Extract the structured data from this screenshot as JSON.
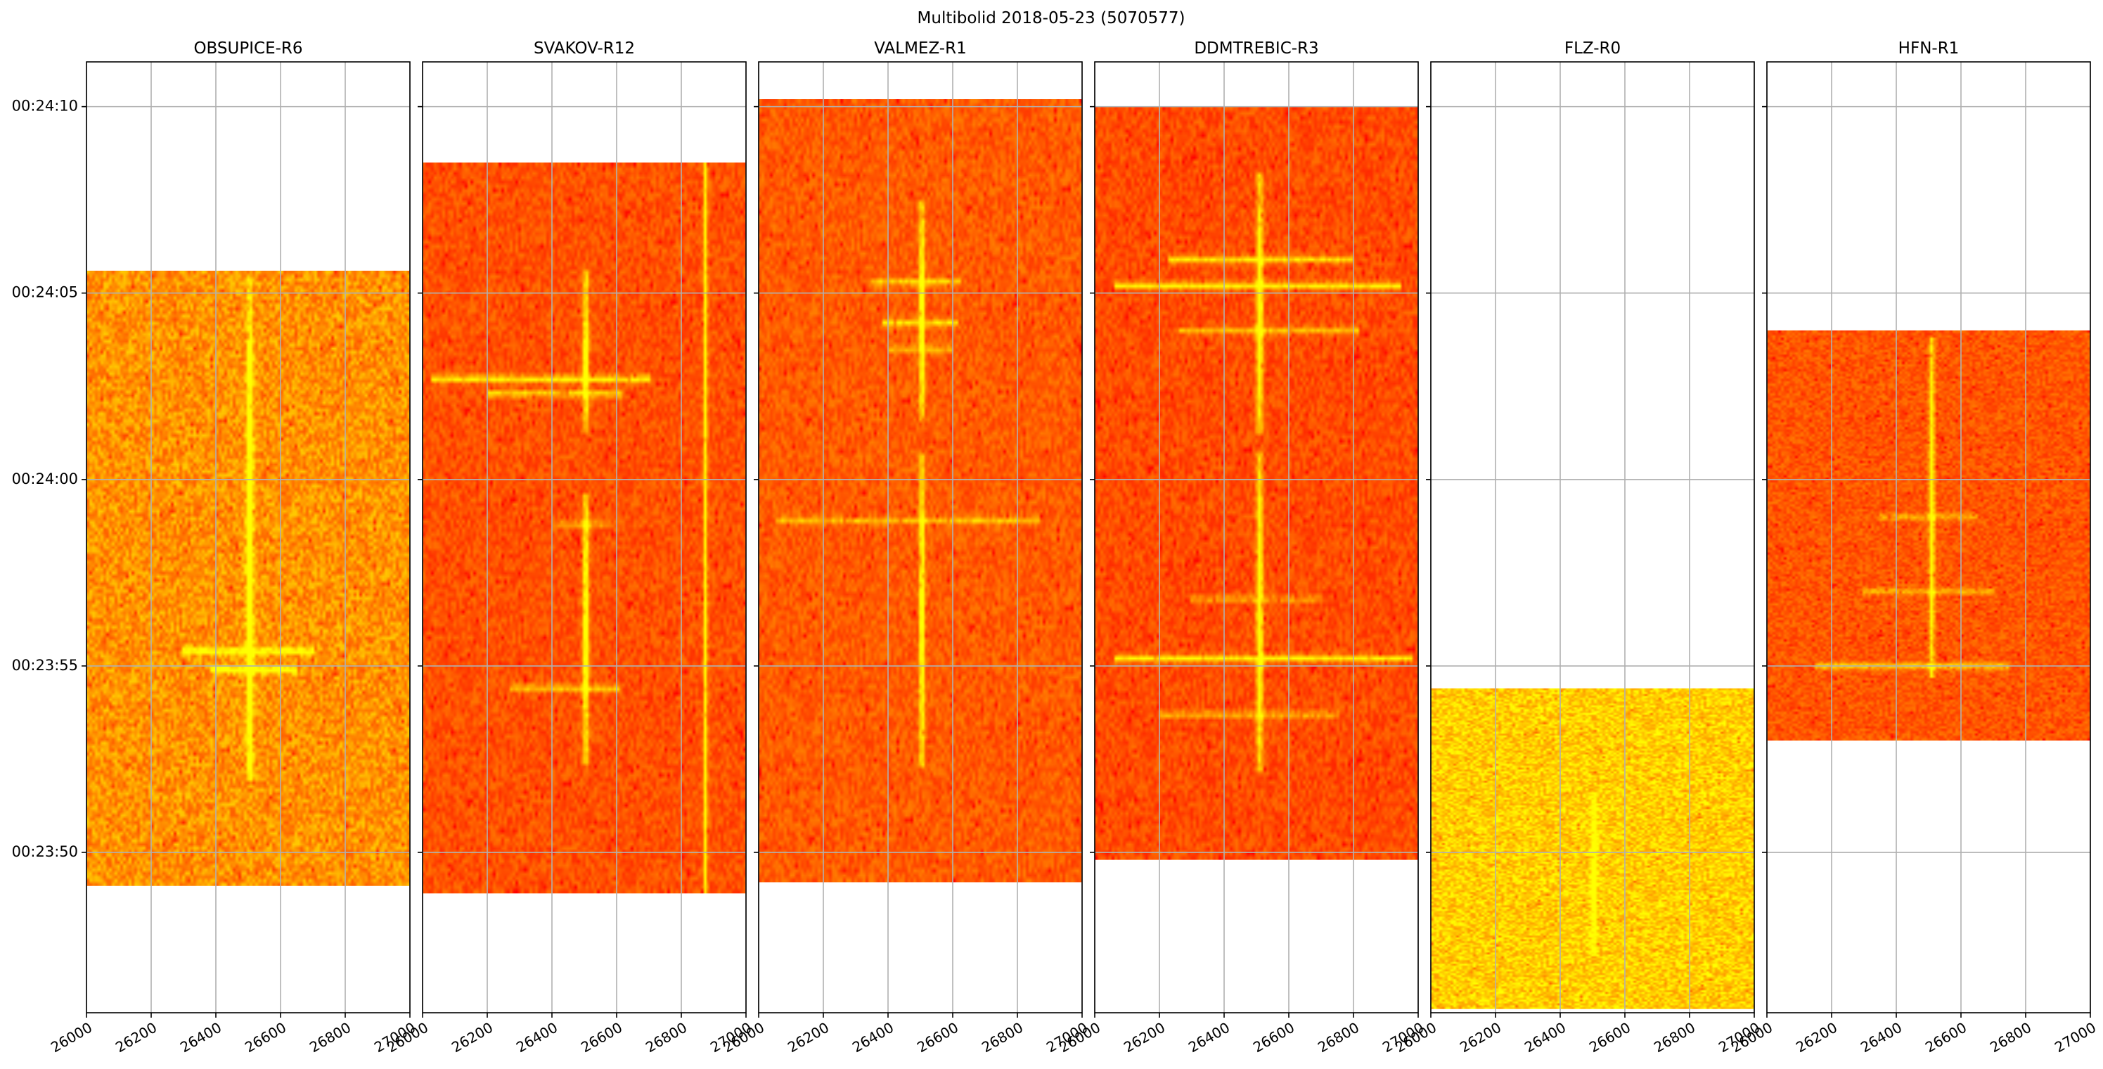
{
  "figure": {
    "title": "Multibolid 2018-05-23 (5070577)"
  },
  "chart_data": {
    "type": "heatmap",
    "title": "Multibolid 2018-05-23 (5070577)",
    "x_range": [
      26000,
      27000
    ],
    "x_ticks": [
      "26000",
      "26200",
      "26400",
      "26600",
      "26800",
      "27000"
    ],
    "y_range_seconds": [
      1425.7,
      1451.2
    ],
    "y_ticks": [
      {
        "label": "00:24:10",
        "sec": 1450
      },
      {
        "label": "00:24:05",
        "sec": 1445
      },
      {
        "label": "00:24:00",
        "sec": 1440
      },
      {
        "label": "00:23:55",
        "sec": 1435
      },
      {
        "label": "00:23:50",
        "sec": 1430
      }
    ],
    "grid": true,
    "colormap": "autumn (red-yellow)",
    "panels": [
      {
        "title": "OBSUPICE-R6",
        "data_time_range": [
          1429.1,
          1445.6
        ],
        "base_intensity": 0.58,
        "noise": 0.22,
        "meteor_freq": 26505,
        "meteor_segments": [
          [
            1431.9,
            1443.8,
            1.0,
            10
          ],
          [
            1443.0,
            1445.5,
            0.6,
            6
          ]
        ],
        "flares": [
          [
            1434.9,
            1.0,
            26380,
            26650
          ],
          [
            1435.4,
            0.9,
            26300,
            26700
          ]
        ],
        "carrier": null
      },
      {
        "title": "SVAKOV-R12",
        "data_time_range": [
          1428.9,
          1448.5
        ],
        "base_intensity": 0.32,
        "noise": 0.14,
        "meteor_freq": 26505,
        "meteor_segments": [
          [
            1432.4,
            1439.6,
            1.0,
            9
          ],
          [
            1441.2,
            1445.6,
            0.95,
            9
          ]
        ],
        "flares": [
          [
            1442.7,
            1.0,
            26030,
            26700
          ],
          [
            1442.3,
            0.8,
            26200,
            26620
          ],
          [
            1434.4,
            0.7,
            26270,
            26610
          ],
          [
            1438.8,
            0.5,
            26400,
            26580
          ]
        ],
        "carrier": {
          "freq": 26875,
          "strength": 0.75
        }
      },
      {
        "title": "VALMEZ-R1",
        "data_time_range": [
          1429.2,
          1450.2
        ],
        "base_intensity": 0.36,
        "noise": 0.14,
        "meteor_freq": 26505,
        "meteor_segments": [
          [
            1432.3,
            1440.7,
            0.95,
            8
          ],
          [
            1441.5,
            1447.5,
            0.95,
            8
          ]
        ],
        "flares": [
          [
            1444.2,
            0.8,
            26380,
            26620
          ],
          [
            1445.3,
            0.7,
            26350,
            26630
          ],
          [
            1438.9,
            0.6,
            26050,
            26870
          ],
          [
            1443.5,
            0.5,
            26400,
            26600
          ]
        ],
        "carrier": null
      },
      {
        "title": "DDMTREBIC-R3",
        "data_time_range": [
          1429.8,
          1450.0
        ],
        "base_intensity": 0.3,
        "noise": 0.14,
        "meteor_freq": 26510,
        "meteor_segments": [
          [
            1432.2,
            1440.7,
            1.0,
            10
          ],
          [
            1441.2,
            1448.2,
            1.0,
            10
          ]
        ],
        "flares": [
          [
            1445.9,
            0.9,
            26230,
            26800
          ],
          [
            1445.2,
            1.0,
            26060,
            26950
          ],
          [
            1444.0,
            0.7,
            26260,
            26820
          ],
          [
            1435.2,
            1.0,
            26060,
            26980
          ],
          [
            1433.7,
            0.6,
            26200,
            26760
          ],
          [
            1436.8,
            0.5,
            26300,
            26700
          ]
        ],
        "carrier": null
      },
      {
        "title": "FLZ-R0",
        "data_time_range": [
          1425.8,
          1434.4
        ],
        "base_intensity": 0.82,
        "noise": 0.22,
        "meteor_freq": 26505,
        "meteor_segments": [
          [
            1427.2,
            1431.6,
            0.55,
            9
          ]
        ],
        "flares": [],
        "carrier": null
      },
      {
        "title": "HFN-R1",
        "data_time_range": [
          1433.0,
          1444.0
        ],
        "base_intensity": 0.34,
        "noise": 0.14,
        "meteor_freq": 26510,
        "meteor_segments": [
          [
            1434.7,
            1443.8,
            1.0,
            8
          ]
        ],
        "flares": [
          [
            1435.0,
            0.7,
            26150,
            26750
          ],
          [
            1437.0,
            0.5,
            26300,
            26700
          ],
          [
            1439.0,
            0.45,
            26350,
            26650
          ]
        ],
        "carrier": null
      }
    ]
  }
}
